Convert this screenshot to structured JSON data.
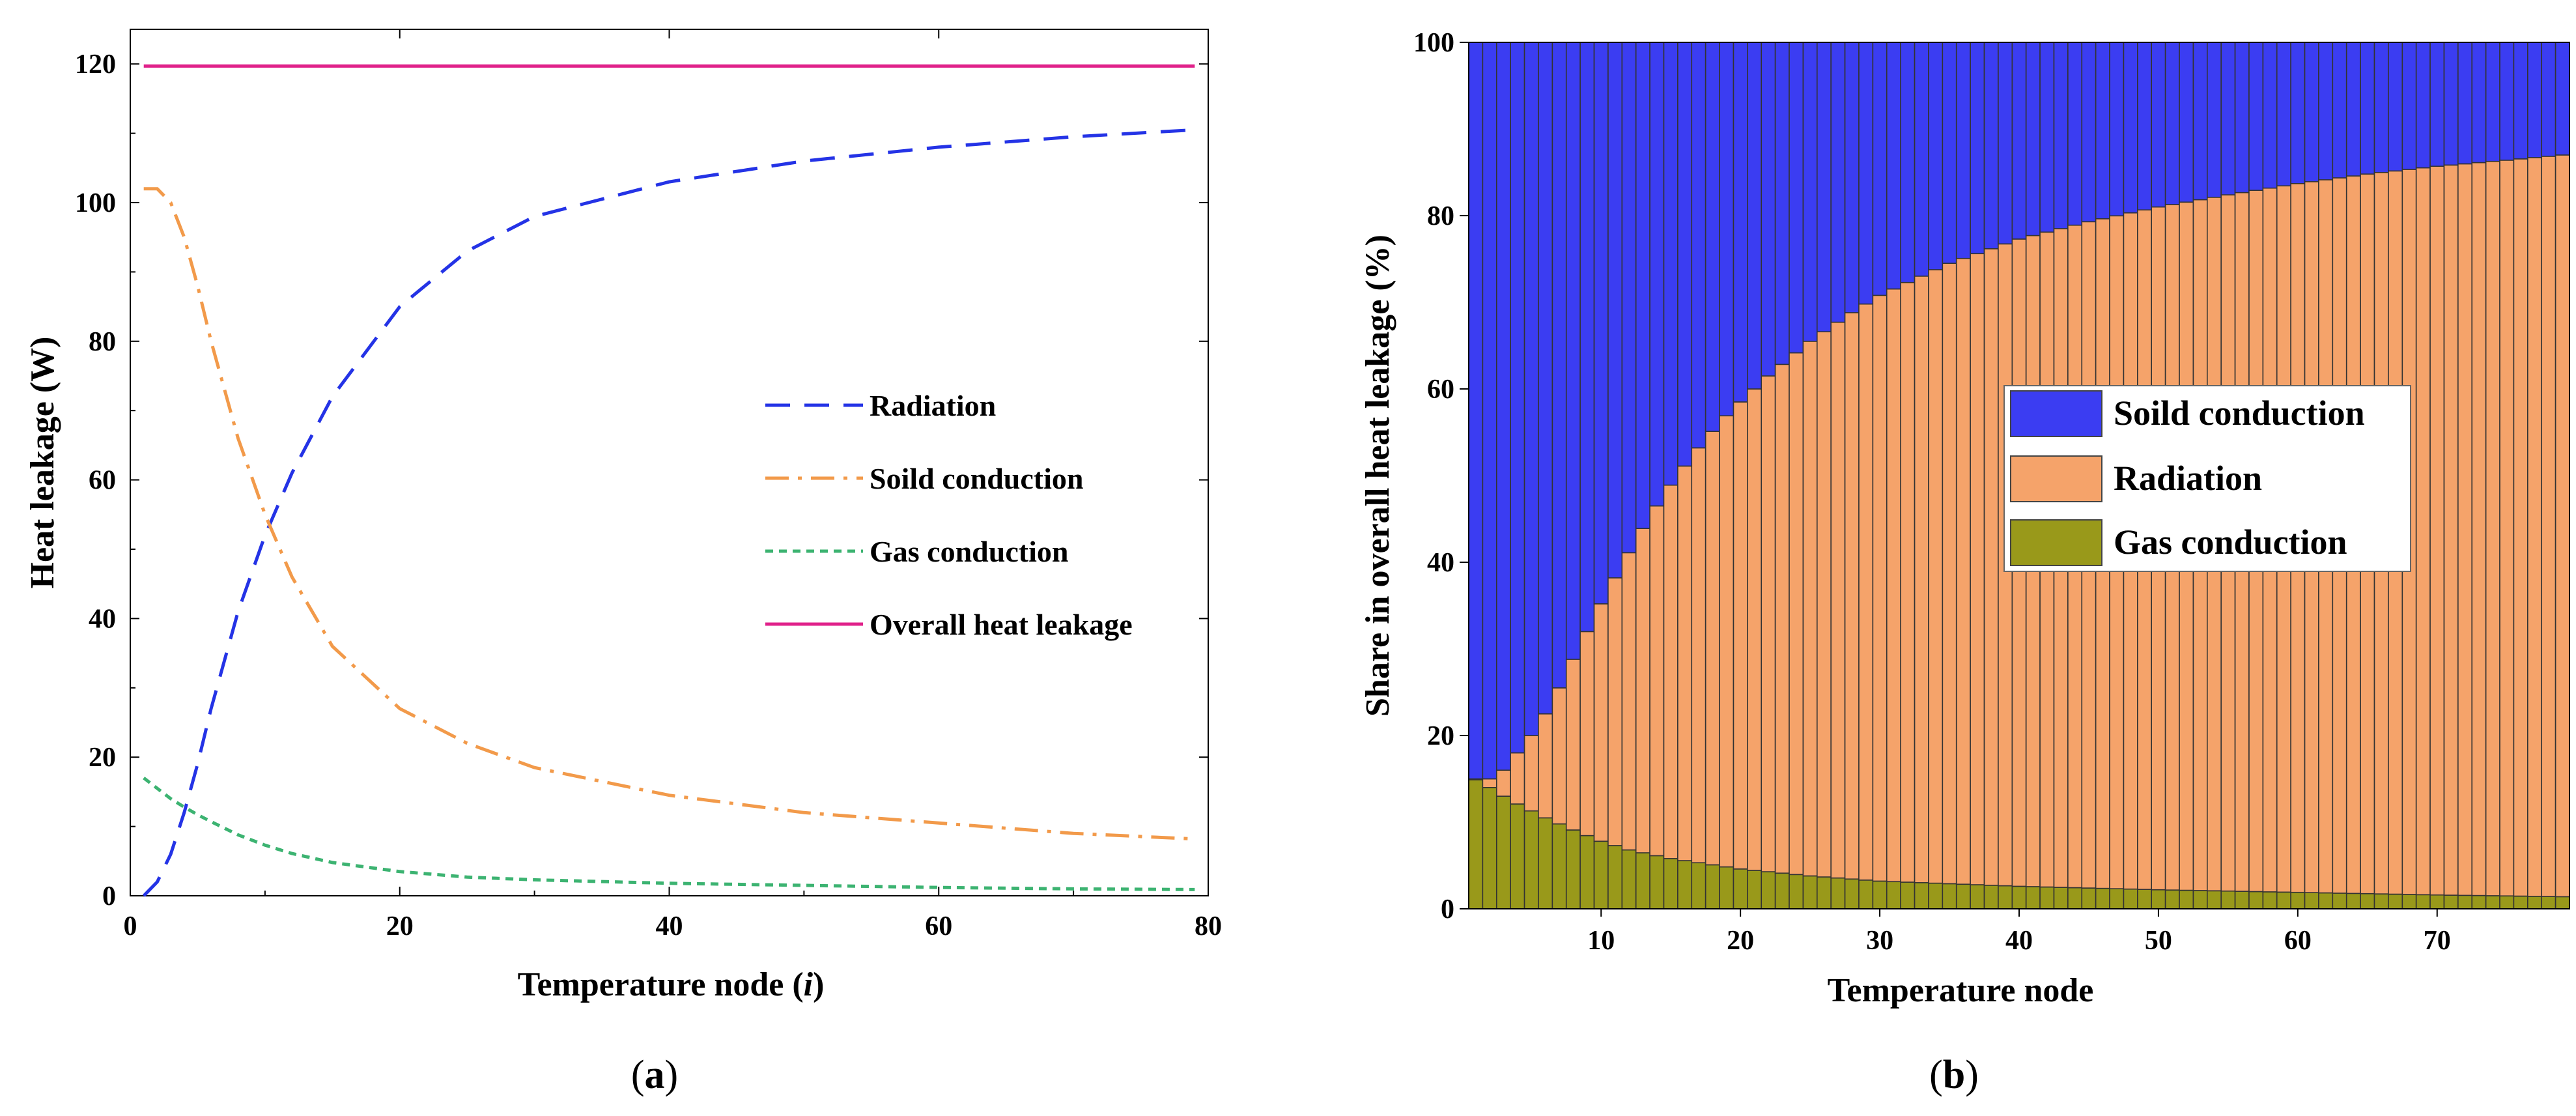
{
  "chart_data": [
    {
      "type": "line",
      "panel_label_open": "(",
      "panel_label_letter": "a",
      "panel_label_close": ")",
      "xlabel_main": "Temperature node (",
      "xlabel_italic": "i",
      "xlabel_end": ")",
      "ylabel": "Heat leakage (W)",
      "xlim": [
        0,
        80
      ],
      "ylim": [
        0,
        125
      ],
      "x_ticks": [
        0,
        20,
        40,
        60,
        80
      ],
      "y_ticks": [
        0,
        20,
        40,
        60,
        80,
        100,
        120
      ],
      "legend_position": "center-right",
      "series": [
        {
          "name": "Radiation",
          "color": "#2433e6",
          "dash": "dashed",
          "x": [
            1,
            2,
            3,
            4,
            5,
            6,
            7,
            8,
            10,
            12,
            15,
            20,
            25,
            30,
            40,
            50,
            60,
            70,
            79
          ],
          "y": [
            0,
            2,
            6,
            12,
            19,
            27,
            34,
            41,
            52,
            61,
            72,
            85,
            93,
            98,
            103,
            106,
            108,
            109.5,
            110.5
          ]
        },
        {
          "name": "Soild conduction",
          "color": "#f29a4a",
          "dash": "dashdot",
          "x": [
            1,
            2,
            3,
            4,
            5,
            6,
            8,
            10,
            12,
            15,
            20,
            25,
            30,
            40,
            50,
            60,
            70,
            79
          ],
          "y": [
            102,
            102,
            100,
            95,
            88,
            80,
            66,
            55,
            46,
            36,
            27,
            22,
            18.5,
            14.5,
            12,
            10.5,
            9,
            8.2
          ]
        },
        {
          "name": "Gas conduction",
          "color": "#3cb371",
          "dash": "dotted",
          "x": [
            1,
            2,
            3,
            4,
            5,
            6,
            8,
            10,
            12,
            15,
            20,
            25,
            30,
            40,
            50,
            60,
            70,
            79
          ],
          "y": [
            17,
            15.5,
            14,
            12.8,
            11.7,
            10.7,
            8.8,
            7.3,
            6.1,
            4.8,
            3.5,
            2.7,
            2.3,
            1.8,
            1.5,
            1.2,
            1.0,
            0.9
          ]
        },
        {
          "name": "Overall heat leakage",
          "color": "#e0218a",
          "dash": "solid",
          "x": [
            1,
            79
          ],
          "y": [
            119.7,
            119.7
          ]
        }
      ]
    },
    {
      "type": "bar",
      "stacked": true,
      "panel_label_open": "(",
      "panel_label_letter": "b",
      "panel_label_close": ")",
      "xlabel": "Temperature node",
      "ylabel": "Share in overall heat leakage (%)",
      "ylim": [
        0,
        100
      ],
      "x_ticks": [
        10,
        20,
        30,
        40,
        50,
        60,
        70
      ],
      "y_ticks": [
        0,
        20,
        40,
        60,
        80,
        100
      ],
      "node_count": 79,
      "legend_position": "center-right",
      "series": [
        {
          "name": "Soild conduction",
          "color": "#3b3df2",
          "remainder": true
        },
        {
          "name": "Radiation",
          "color": "#f5a36a",
          "cumulative_x": [
            1,
            2,
            3,
            4,
            5,
            6,
            7,
            8,
            9,
            10,
            11,
            12,
            13,
            14,
            15,
            16,
            17,
            18,
            19,
            20,
            22,
            25,
            28,
            30,
            35,
            40,
            45,
            50,
            55,
            60,
            65,
            70,
            75,
            79
          ],
          "cumulative_y": [
            15,
            15,
            16,
            18,
            20,
            22.5,
            25.5,
            28.8,
            32,
            35.2,
            38.2,
            41.1,
            43.9,
            46.5,
            48.9,
            51.1,
            53.2,
            55.1,
            56.9,
            58.5,
            61.5,
            65.5,
            68.8,
            70.8,
            74.5,
            77.3,
            79.3,
            81,
            82.4,
            83.7,
            84.8,
            85.7,
            86.4,
            87
          ]
        },
        {
          "name": "Gas conduction",
          "color": "#99991a",
          "x": [
            1,
            2,
            3,
            4,
            5,
            6,
            7,
            8,
            10,
            12,
            15,
            20,
            25,
            30,
            40,
            50,
            60,
            70,
            79
          ],
          "y": [
            14.9,
            14.0,
            13.0,
            12.1,
            11.3,
            10.5,
            9.8,
            9.1,
            7.8,
            6.8,
            5.8,
            4.6,
            3.8,
            3.2,
            2.6,
            2.2,
            1.9,
            1.6,
            1.4
          ]
        }
      ]
    }
  ]
}
